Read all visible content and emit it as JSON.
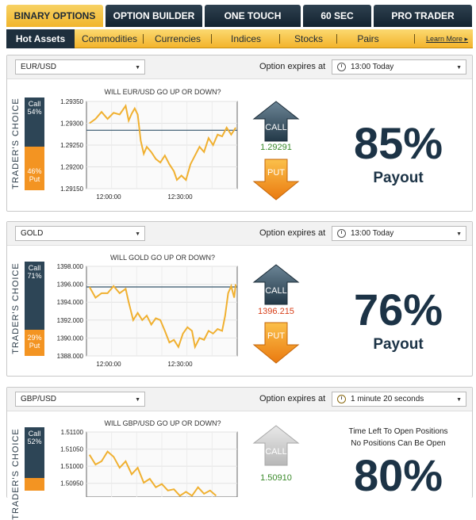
{
  "top_tabs": [
    {
      "label": "BINARY OPTIONS",
      "active": true
    },
    {
      "label": "OPTION BUILDER",
      "active": false
    },
    {
      "label": "ONE TOUCH",
      "active": false
    },
    {
      "label": "60 SEC",
      "active": false
    },
    {
      "label": "PRO TRADER",
      "active": false
    }
  ],
  "sub_nav": {
    "items": [
      "Hot Assets",
      "Commodities",
      "Currencies",
      "Indices",
      "Stocks",
      "Pairs"
    ],
    "active": "Hot Assets",
    "more_label": "Learn More ▸"
  },
  "panels": [
    {
      "asset": "EUR/USD",
      "expires_label": "Option expires at",
      "expiry": "13:00 Today",
      "traders_choice_label": "TRADER'S CHOICE",
      "call_text": "Call",
      "call_pct": "54%",
      "put_text": "Put",
      "put_pct": "46%",
      "chart_title": "WILL EUR/USD GO UP OR DOWN?",
      "y_ticks": [
        "1.29350",
        "1.29300",
        "1.29250",
        "1.29200",
        "1.29150"
      ],
      "x_ticks": [
        "12:00:00",
        "12:30:00"
      ],
      "current_price": "1.29291",
      "call_label": "CALL",
      "put_label": "PUT",
      "payout_pct": "85%",
      "payout_label": "Payout"
    },
    {
      "asset": "GOLD",
      "expires_label": "Option expires at",
      "expiry": "13:00 Today",
      "traders_choice_label": "TRADER'S CHOICE",
      "call_text": "Call",
      "call_pct": "71%",
      "put_text": "Put",
      "put_pct": "29%",
      "chart_title": "WILL GOLD GO UP OR DOWN?",
      "y_ticks": [
        "1398.000",
        "1396.000",
        "1394.000",
        "1392.000",
        "1390.000",
        "1388.000"
      ],
      "x_ticks": [
        "12:00:00",
        "12:30:00"
      ],
      "current_price": "1396.215",
      "call_label": "CALL",
      "put_label": "PUT",
      "payout_pct": "76%",
      "payout_label": "Payout"
    },
    {
      "asset": "GBP/USD",
      "expires_label": "Option expires at",
      "expiry": "1 minute 20 seconds",
      "traders_choice_label": "TRADER'S CHOICE",
      "call_text": "Call",
      "call_pct": "52%",
      "put_text": "Put",
      "put_pct": "",
      "chart_title": "WILL GBP/USD GO UP OR DOWN?",
      "y_ticks": [
        "1.51100",
        "1.51050",
        "1.51000",
        "1.50950"
      ],
      "x_ticks": [],
      "current_price": "1.50910",
      "call_label": "CALL",
      "put_label": "",
      "notice_line1": "Time Left To Open Positions",
      "notice_line2": "No Positions Can Be Open",
      "payout_pct": "80%",
      "payout_label": ""
    }
  ],
  "colors": {
    "navy": "#1c3346",
    "tab_active": "#f3c040",
    "call_blue": "#2d4556",
    "put_orange": "#f39422",
    "line_gold": "#f0b030",
    "price_green": "#3a8a2a",
    "price_red": "#d8401a"
  }
}
